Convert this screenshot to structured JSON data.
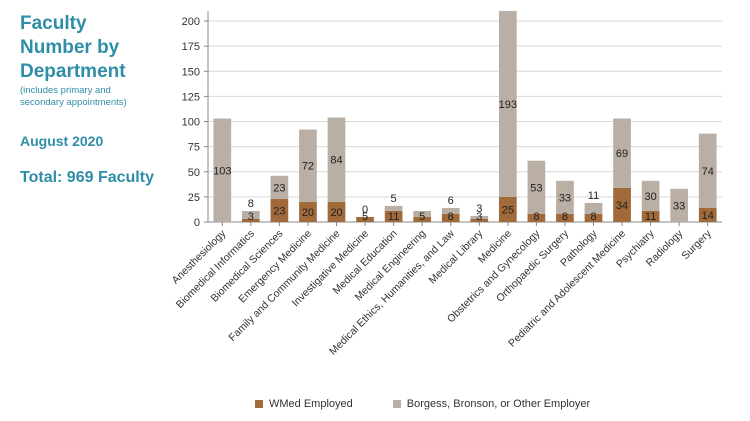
{
  "side": {
    "title_lines": [
      "Faculty",
      "Number by",
      "Department"
    ],
    "note_lines": [
      "(includes primary and",
      "secondary appointments)"
    ],
    "date": "August 2020",
    "total": "Total: 969 Faculty"
  },
  "colors": {
    "wmed": "#a06a3a",
    "other": "#b9afa5",
    "axis": "#888888",
    "grid": "#d9d9d9"
  },
  "chart_data": {
    "type": "bar",
    "stacked": true,
    "categories": [
      "Anesthesiology",
      "Biomedical Informatics",
      "Biomedical Sciences",
      "Emergency Medicine",
      "Family and Community Medicine",
      "Investigative Medicine",
      "Medical Education",
      "Medical Engineering",
      "Medical Ethics, Humanities, and Law",
      "Medical Library",
      "Medicine",
      "Obstetrics and Gynecology",
      "Orthopaedic Surgery",
      "Pathology",
      "Pediatric and Adolescent Medicine",
      "Psychiatry",
      "Radiology",
      "Surgery"
    ],
    "series": [
      {
        "name": "WMed Employed",
        "values": [
          0,
          3,
          23,
          20,
          20,
          5,
          11,
          5,
          8,
          3,
          25,
          8,
          8,
          8,
          34,
          11,
          0,
          14
        ],
        "labels": [
          "",
          "3",
          "23",
          "20",
          "20",
          "5",
          "11",
          "5",
          "8",
          "3",
          "25",
          "8",
          "8",
          "8",
          "34",
          "11",
          "",
          "14"
        ]
      },
      {
        "name": "Borgess, Bronson, or Other Employer",
        "values": [
          103,
          8,
          23,
          72,
          84,
          0,
          5,
          6,
          6,
          3,
          193,
          53,
          33,
          11,
          69,
          30,
          33,
          74
        ],
        "labels": [
          "103",
          "8",
          "23",
          "72",
          "84",
          "0",
          "5",
          "",
          "6",
          "3",
          "193",
          "53",
          "33",
          "11",
          "69",
          "30",
          "33",
          "74"
        ]
      }
    ],
    "ylim": [
      0,
      210
    ],
    "yticks": [
      0,
      25,
      50,
      75,
      100,
      125,
      150,
      175,
      200
    ],
    "grid": true,
    "legend_position": "bottom"
  }
}
